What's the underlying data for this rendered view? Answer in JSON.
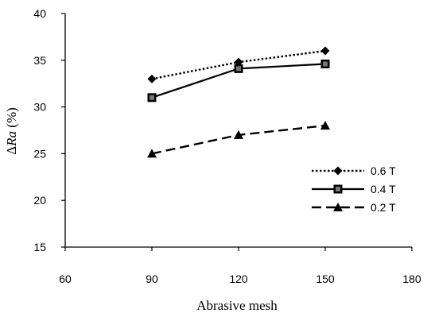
{
  "chart_data": {
    "type": "line",
    "xlabel": "Abrasive mesh",
    "ylabel_prefix": "Δ",
    "ylabel_italic": "Ra",
    "ylabel_suffix": " (%)",
    "xlim": [
      60,
      180
    ],
    "ylim": [
      15,
      40
    ],
    "xticks": [
      60,
      90,
      120,
      150,
      180
    ],
    "yticks": [
      15,
      20,
      25,
      30,
      35,
      40
    ],
    "grid": false,
    "legend_position": "right",
    "x": [
      90,
      120,
      150
    ],
    "series": [
      {
        "name": "0.6 T",
        "values": [
          33,
          34.8,
          36
        ],
        "style": "dotted",
        "marker": "diamond",
        "color": "#000000"
      },
      {
        "name": "0.4 T",
        "values": [
          31,
          34.1,
          34.6
        ],
        "style": "solid",
        "marker": "square",
        "color": "#000000"
      },
      {
        "name": "0.2 T",
        "values": [
          25,
          27,
          28
        ],
        "style": "dashed",
        "marker": "triangle",
        "color": "#000000"
      }
    ]
  }
}
